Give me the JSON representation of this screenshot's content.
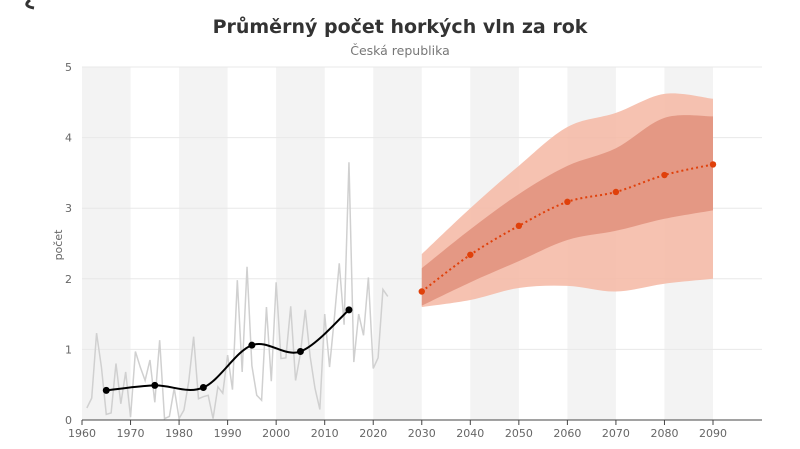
{
  "chart_data": {
    "type": "line",
    "title": "Průměrný počet horkých vln za rok",
    "subtitle": "Česká republika",
    "xlabel": "",
    "ylabel": "počet",
    "xlim": [
      1960,
      2090
    ],
    "ylim": [
      0,
      5
    ],
    "x_ticks": [
      "1960",
      "1970",
      "1980",
      "1990",
      "2000",
      "2010",
      "2020",
      "2030",
      "2040",
      "2050",
      "2060",
      "2070",
      "2080",
      "2090"
    ],
    "y_ticks": [
      "0",
      "1",
      "2",
      "3",
      "4",
      "5"
    ],
    "grid": true,
    "shaded_decades": [
      [
        1960,
        1970
      ],
      [
        1980,
        1990
      ],
      [
        2000,
        2010
      ],
      [
        2020,
        2030
      ],
      [
        2040,
        2050
      ],
      [
        2060,
        2070
      ],
      [
        2080,
        2090
      ]
    ],
    "annual": {
      "color": "#d0d0d0",
      "x": [
        1961,
        1962,
        1963,
        1964,
        1965,
        1966,
        1967,
        1968,
        1969,
        1970,
        1971,
        1972,
        1973,
        1974,
        1975,
        1976,
        1977,
        1978,
        1979,
        1980,
        1981,
        1982,
        1983,
        1984,
        1985,
        1986,
        1987,
        1988,
        1989,
        1990,
        1991,
        1992,
        1993,
        1994,
        1995,
        1996,
        1997,
        1998,
        1999,
        2000,
        2001,
        2002,
        2003,
        2004,
        2005,
        2006,
        2007,
        2008,
        2009,
        2010,
        2011,
        2012,
        2013,
        2014,
        2015,
        2016,
        2017,
        2018,
        2019,
        2020,
        2021,
        2022,
        2023
      ],
      "y": [
        0.17,
        0.31,
        1.23,
        0.75,
        0.08,
        0.1,
        0.8,
        0.23,
        0.68,
        0.04,
        0.97,
        0.75,
        0.56,
        0.85,
        0.25,
        1.13,
        0.02,
        0.05,
        0.45,
        0.02,
        0.14,
        0.55,
        1.18,
        0.3,
        0.33,
        0.35,
        0.02,
        0.47,
        0.38,
        0.92,
        0.43,
        1.98,
        0.68,
        2.17,
        0.77,
        0.35,
        0.28,
        1.6,
        0.55,
        1.95,
        0.87,
        0.88,
        1.61,
        0.56,
        0.94,
        1.56,
        0.9,
        0.45,
        0.15,
        1.5,
        0.75,
        1.45,
        2.22,
        1.35,
        3.65,
        0.82,
        1.5,
        1.2,
        2.02,
        0.73,
        0.88,
        1.85,
        1.75
      ]
    },
    "decadal_observed": {
      "color": "#000000",
      "x": [
        1965,
        1975,
        1985,
        1995,
        2005,
        2015
      ],
      "y": [
        0.42,
        0.49,
        0.46,
        1.06,
        0.97,
        1.56
      ]
    },
    "projection": {
      "color": "#e0400a",
      "x": [
        2030,
        2040,
        2050,
        2060,
        2070,
        2080,
        2090
      ],
      "y": [
        1.82,
        2.34,
        2.75,
        3.09,
        3.23,
        3.47,
        3.62
      ],
      "outer_band": {
        "color": "#f4b7a3",
        "upper": [
          2.35,
          3.0,
          3.6,
          4.15,
          4.35,
          4.62,
          4.55
        ],
        "lower": [
          1.6,
          1.7,
          1.87,
          1.9,
          1.82,
          1.93,
          2.0
        ]
      },
      "inner_band": {
        "color": "#e0917d",
        "upper": [
          2.15,
          2.7,
          3.2,
          3.6,
          3.85,
          4.28,
          4.3
        ],
        "lower": [
          1.62,
          1.95,
          2.25,
          2.55,
          2.68,
          2.85,
          2.97
        ]
      }
    }
  }
}
